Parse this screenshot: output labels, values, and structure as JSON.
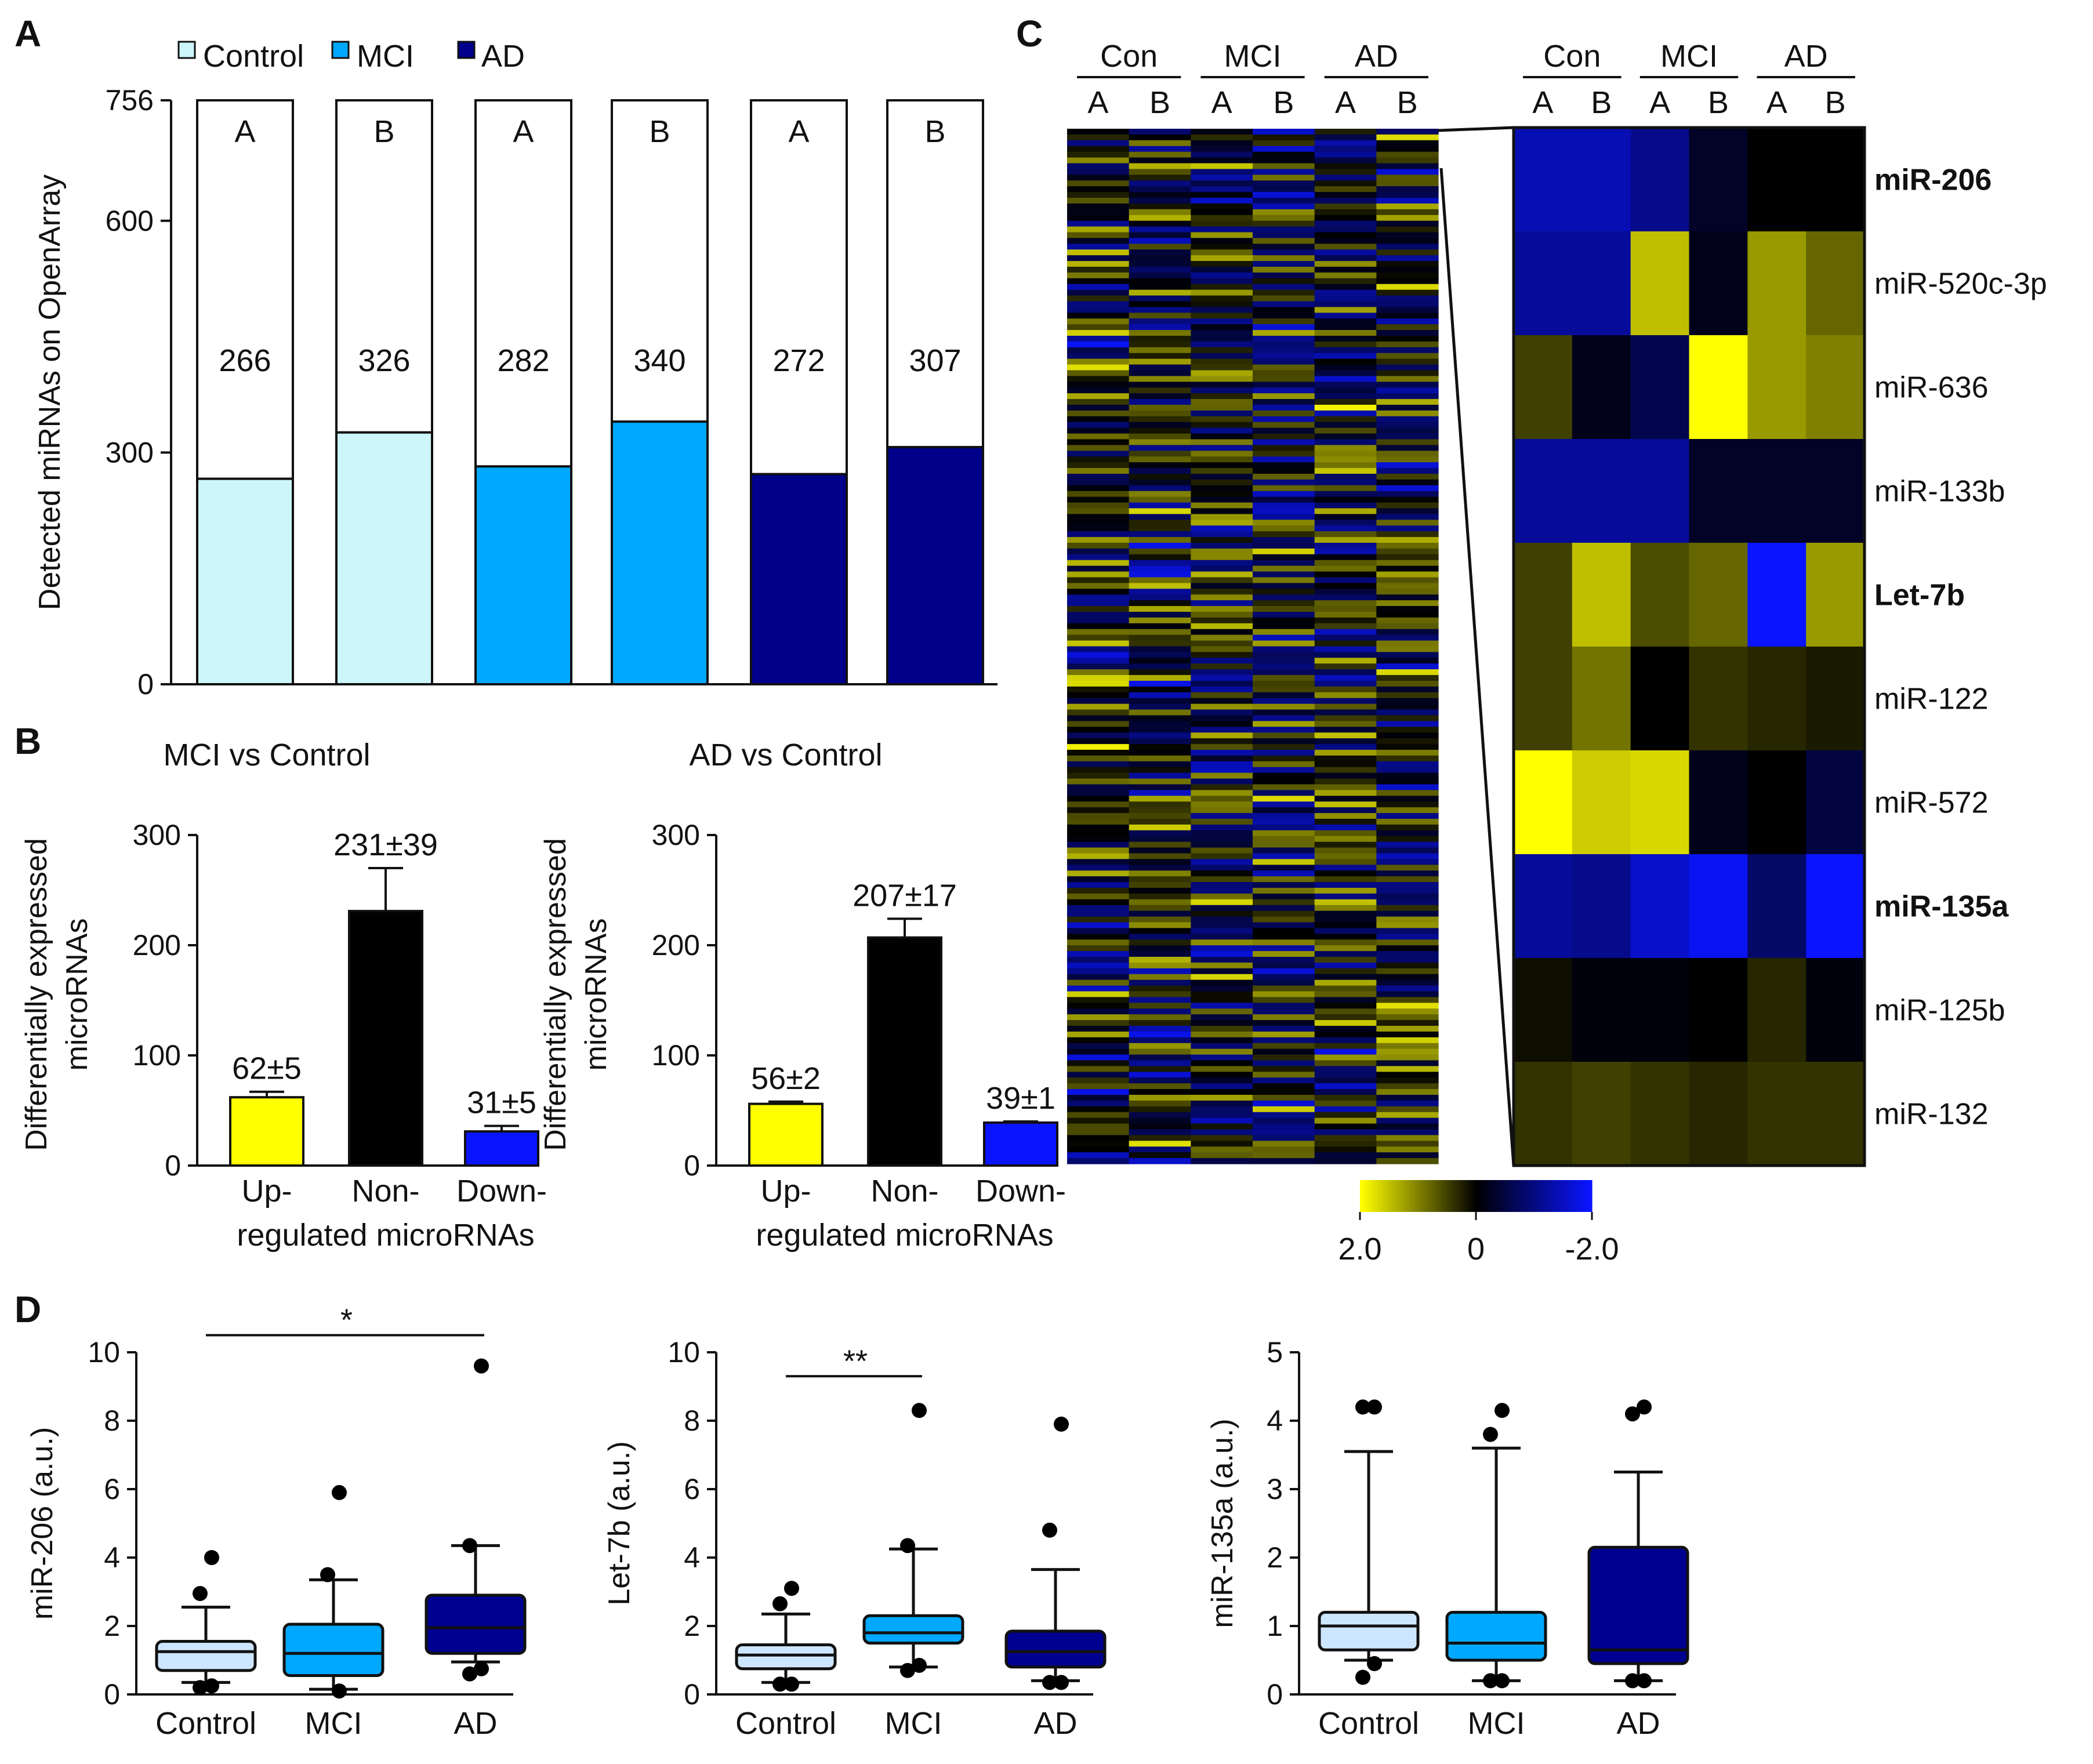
{
  "colors": {
    "control": "#cdf6fb",
    "mci": "#00a8ff",
    "ad": "#00008b",
    "up": "#ffff00",
    "non": "#000000",
    "down": "#0a14ff",
    "box_control": "#cde6ff",
    "box_mci": "#00a8ff",
    "box_ad": "#000090"
  },
  "panel_labels": {
    "a": "A",
    "b": "B",
    "c": "C",
    "d": "D"
  },
  "legend": [
    {
      "key": "control",
      "label": "Control"
    },
    {
      "key": "mci",
      "label": "MCI"
    },
    {
      "key": "ad",
      "label": "AD"
    }
  ],
  "chart_data": [
    {
      "id": "A",
      "type": "bar",
      "stacked": true,
      "ylabel": "Detected miRNAs on OpenArray",
      "ylim": [
        0,
        756
      ],
      "yticks": [
        0,
        300,
        600,
        756
      ],
      "bars": [
        {
          "group": "control",
          "label": "A",
          "detected": 266,
          "total": 756
        },
        {
          "group": "control",
          "label": "B",
          "detected": 326,
          "total": 756
        },
        {
          "group": "mci",
          "label": "A",
          "detected": 282,
          "total": 756
        },
        {
          "group": "mci",
          "label": "B",
          "detected": 340,
          "total": 756
        },
        {
          "group": "ad",
          "label": "A",
          "detected": 272,
          "total": 756
        },
        {
          "group": "ad",
          "label": "B",
          "detected": 307,
          "total": 756
        }
      ]
    },
    {
      "id": "B1",
      "type": "bar",
      "title": "MCI vs Control",
      "ylabel": [
        "Differentially expressed",
        "microRNAs"
      ],
      "xlabel": "regulated microRNAs",
      "ylim": [
        0,
        300
      ],
      "yticks": [
        0,
        100,
        200,
        300
      ],
      "categories": [
        "Up-",
        "Non-",
        "Down-"
      ],
      "values": [
        62,
        231,
        31
      ],
      "errors": [
        5,
        39,
        5
      ],
      "value_labels": [
        "62±5",
        "231±39",
        "31±5"
      ],
      "colors": [
        "up",
        "non",
        "down"
      ]
    },
    {
      "id": "B2",
      "type": "bar",
      "title": "AD vs Control",
      "ylabel": [
        "Differentially expressed",
        "microRNAs"
      ],
      "xlabel": "regulated microRNAs",
      "ylim": [
        0,
        300
      ],
      "yticks": [
        0,
        100,
        200,
        300
      ],
      "categories": [
        "Up-",
        "Non-",
        "Down-"
      ],
      "values": [
        56,
        207,
        39
      ],
      "errors": [
        2,
        17,
        1
      ],
      "value_labels": [
        "56±2",
        "207±17",
        "39±1"
      ],
      "colors": [
        "up",
        "non",
        "down"
      ]
    },
    {
      "id": "C",
      "type": "heatmap",
      "groups": [
        "Con",
        "MCI",
        "AD"
      ],
      "subgroups": [
        "A",
        "B"
      ],
      "rows": [
        {
          "name": "miR-206",
          "bold": true,
          "values": [
            -1.4,
            -1.4,
            -1.1,
            -0.3,
            0,
            0
          ]
        },
        {
          "name": "miR-520c-3p",
          "bold": false,
          "values": [
            -1.2,
            -1.2,
            1.5,
            -0.2,
            1.2,
            0.8
          ]
        },
        {
          "name": "miR-636",
          "bold": false,
          "values": [
            0.5,
            -0.2,
            -0.6,
            2.0,
            1.2,
            1.0
          ]
        },
        {
          "name": "miR-133b",
          "bold": false,
          "values": [
            -1.2,
            -1.2,
            -1.2,
            -0.3,
            -0.3,
            -0.3
          ]
        },
        {
          "name": "Let-7b",
          "bold": true,
          "values": [
            0.5,
            1.5,
            0.6,
            0.8,
            -2.0,
            1.2
          ]
        },
        {
          "name": "miR-122",
          "bold": false,
          "values": [
            0.5,
            0.9,
            0,
            0.4,
            0.3,
            0.2
          ]
        },
        {
          "name": "miR-572",
          "bold": false,
          "values": [
            2.0,
            1.6,
            1.7,
            -0.2,
            0,
            -0.5
          ]
        },
        {
          "name": "miR-135a",
          "bold": true,
          "values": [
            -1.2,
            -1.1,
            -1.6,
            -1.9,
            -0.8,
            -2.0
          ]
        },
        {
          "name": "miR-125b",
          "bold": false,
          "values": [
            0.1,
            -0.1,
            -0.1,
            0,
            0.3,
            -0.1
          ]
        },
        {
          "name": "miR-132",
          "bold": false,
          "values": [
            0.4,
            0.5,
            0.4,
            0.3,
            0.4,
            0.4
          ]
        }
      ],
      "colorbar": {
        "labels": [
          "2.0",
          "0",
          "-2.0"
        ],
        "range": [
          2.0,
          -2.0
        ]
      }
    },
    {
      "id": "D1",
      "type": "box",
      "ylabel": "miR-206 (a.u.)",
      "ylim": [
        0,
        10
      ],
      "yticks": [
        0,
        2,
        4,
        6,
        8,
        10
      ],
      "categories": [
        "Control",
        "MCI",
        "AD"
      ],
      "boxes": [
        {
          "whisker_low": 0.35,
          "q1": 0.7,
          "median": 1.25,
          "q3": 1.55,
          "whisker_high": 2.55,
          "outliers": [
            4.0,
            2.95,
            0.25,
            0.2
          ]
        },
        {
          "whisker_low": 0.15,
          "q1": 0.55,
          "median": 1.2,
          "q3": 2.05,
          "whisker_high": 3.35,
          "outliers": [
            5.9,
            3.5,
            0.1
          ]
        },
        {
          "whisker_low": 0.95,
          "q1": 1.2,
          "median": 1.95,
          "q3": 2.9,
          "whisker_high": 4.35,
          "outliers": [
            9.6,
            4.35,
            0.75,
            0.6
          ]
        }
      ],
      "significance": {
        "label": "*",
        "from": 0,
        "to": 2,
        "y": 10.5
      }
    },
    {
      "id": "D2",
      "type": "box",
      "ylabel": "Let-7b (a.u.)",
      "ylim": [
        0,
        10
      ],
      "yticks": [
        0,
        2,
        4,
        6,
        8,
        10
      ],
      "categories": [
        "Control",
        "MCI",
        "AD"
      ],
      "boxes": [
        {
          "whisker_low": 0.35,
          "q1": 0.75,
          "median": 1.15,
          "q3": 1.45,
          "whisker_high": 2.35,
          "outliers": [
            3.1,
            2.65,
            0.3,
            0.3
          ]
        },
        {
          "whisker_low": 0.8,
          "q1": 1.5,
          "median": 1.8,
          "q3": 2.3,
          "whisker_high": 4.25,
          "outliers": [
            8.3,
            4.35,
            0.85,
            0.7
          ]
        },
        {
          "whisker_low": 0.4,
          "q1": 0.8,
          "median": 1.25,
          "q3": 1.85,
          "whisker_high": 3.65,
          "outliers": [
            7.9,
            4.8,
            0.35,
            0.35
          ]
        }
      ],
      "significance": {
        "label": "**",
        "from": 0,
        "to": 1,
        "y": 9.3
      }
    },
    {
      "id": "D3",
      "type": "box",
      "ylabel": "miR-135a (a.u.)",
      "ylim": [
        0,
        5
      ],
      "yticks": [
        0,
        1,
        2,
        3,
        4,
        5
      ],
      "categories": [
        "Control",
        "MCI",
        "AD"
      ],
      "boxes": [
        {
          "whisker_low": 0.5,
          "q1": 0.65,
          "median": 1.0,
          "q3": 1.2,
          "whisker_high": 3.55,
          "outliers": [
            4.2,
            4.2,
            0.45,
            0.25
          ]
        },
        {
          "whisker_low": 0.2,
          "q1": 0.5,
          "median": 0.75,
          "q3": 1.2,
          "whisker_high": 3.6,
          "outliers": [
            4.15,
            3.8,
            0.2,
            0.2
          ]
        },
        {
          "whisker_low": 0.2,
          "q1": 0.45,
          "median": 0.65,
          "q3": 2.15,
          "whisker_high": 3.25,
          "outliers": [
            4.2,
            4.1,
            0.2,
            0.2
          ]
        }
      ]
    }
  ]
}
